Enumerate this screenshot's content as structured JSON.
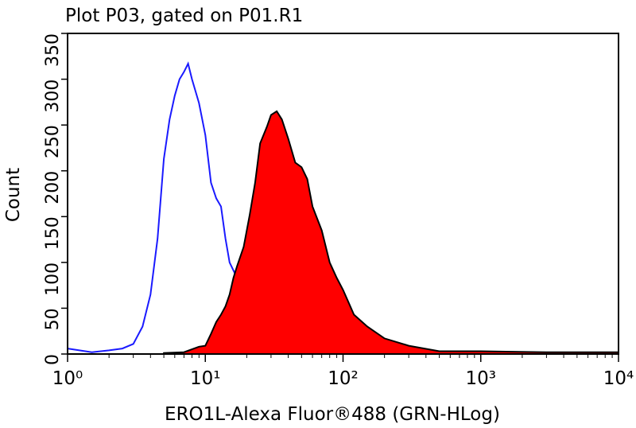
{
  "chart_data": {
    "type": "histogram-overlay",
    "title": "Plot P03, gated on P01.R1",
    "x_label": "ERO1L-Alexa Fluor®488 (GRN-HLog)",
    "y_label": "Count",
    "xscale": "log",
    "xlim": [
      1,
      10000
    ],
    "xticks": [
      {
        "value": 1,
        "label": "10⁰"
      },
      {
        "value": 10,
        "label": "10¹"
      },
      {
        "value": 100,
        "label": "10²"
      },
      {
        "value": 1000,
        "label": "10³"
      },
      {
        "value": 10000,
        "label": "10⁴"
      }
    ],
    "ylim": [
      0,
      350
    ],
    "yticks": [
      0,
      50,
      100,
      150,
      200,
      250,
      300,
      350
    ],
    "series": [
      {
        "color": "#1a1aff",
        "fill": false,
        "x": [
          1,
          1.5,
          2,
          2.5,
          3,
          3.5,
          4,
          4.5,
          5,
          5.5,
          6,
          6.5,
          7,
          7.5,
          8,
          9,
          10,
          11,
          12,
          13,
          14,
          15,
          17,
          19,
          21,
          24,
          27,
          30,
          35,
          40,
          50,
          70,
          100,
          1000,
          3000
        ],
        "values": [
          6,
          2,
          4,
          6,
          11,
          30,
          65,
          126,
          213,
          256,
          282,
          300,
          308,
          317,
          300,
          274,
          239,
          187,
          170,
          161,
          126,
          100,
          83,
          61,
          43,
          30,
          22,
          13,
          8,
          4,
          2,
          1,
          1,
          1,
          1
        ]
      },
      {
        "color": "#ff0000",
        "stroke": "#000000",
        "fill": true,
        "x": [
          5,
          7,
          9,
          10,
          11,
          12,
          13,
          14,
          15,
          16,
          17,
          19,
          21,
          23,
          25,
          28,
          30,
          33,
          36,
          40,
          45,
          50,
          55,
          60,
          70,
          80,
          90,
          100,
          120,
          150,
          200,
          300,
          500,
          1000,
          3000,
          10000
        ],
        "values": [
          1,
          2,
          8,
          9,
          22,
          35,
          43,
          52,
          65,
          83,
          96,
          117,
          152,
          187,
          230,
          248,
          261,
          265,
          256,
          235,
          209,
          204,
          191,
          161,
          135,
          100,
          83,
          70,
          43,
          30,
          17,
          9,
          3,
          3,
          2,
          2
        ]
      }
    ]
  }
}
